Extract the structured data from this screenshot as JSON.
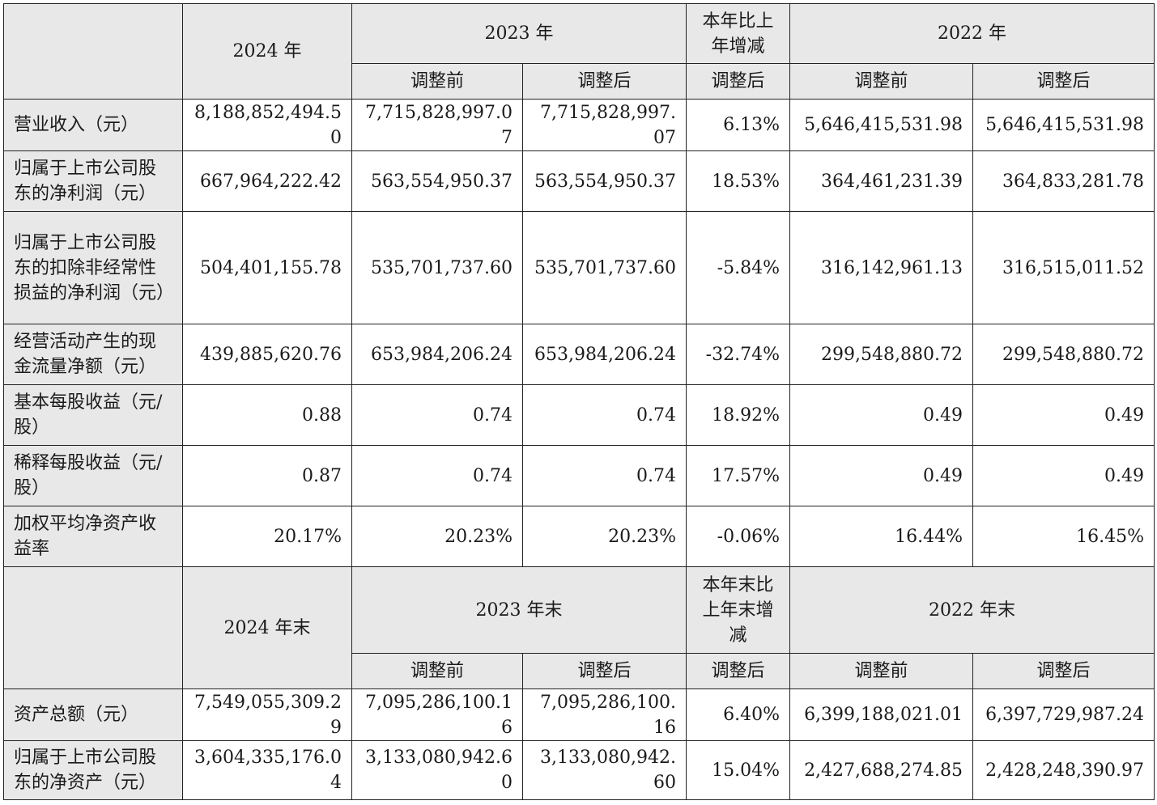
{
  "section1": {
    "headers": {
      "y2024": "2024 年",
      "y2023": "2023 年",
      "change": "本年比上年增减",
      "y2022": "2022 年",
      "before": "调整前",
      "after": "调整后"
    },
    "rows": [
      {
        "label": "营业收入（元）",
        "v2024": "8,188,852,494.50",
        "v2023_before": "7,715,828,997.07",
        "v2023_after": "7,715,828,997.07",
        "change": "6.13%",
        "v2022_before": "5,646,415,531.98",
        "v2022_after": "5,646,415,531.98"
      },
      {
        "label": "归属于上市公司股东的净利润（元）",
        "v2024": "667,964,222.42",
        "v2023_before": "563,554,950.37",
        "v2023_after": "563,554,950.37",
        "change": "18.53%",
        "v2022_before": "364,461,231.39",
        "v2022_after": "364,833,281.78"
      },
      {
        "label": "归属于上市公司股东的扣除非经常性损益的净利润（元）",
        "v2024": "504,401,155.78",
        "v2023_before": "535,701,737.60",
        "v2023_after": "535,701,737.60",
        "change": "-5.84%",
        "v2022_before": "316,142,961.13",
        "v2022_after": "316,515,011.52"
      },
      {
        "label": "经营活动产生的现金流量净额（元）",
        "v2024": "439,885,620.76",
        "v2023_before": "653,984,206.24",
        "v2023_after": "653,984,206.24",
        "change": "-32.74%",
        "v2022_before": "299,548,880.72",
        "v2022_after": "299,548,880.72"
      },
      {
        "label": "基本每股收益（元/股）",
        "v2024": "0.88",
        "v2023_before": "0.74",
        "v2023_after": "0.74",
        "change": "18.92%",
        "v2022_before": "0.49",
        "v2022_after": "0.49"
      },
      {
        "label": "稀释每股收益（元/股）",
        "v2024": "0.87",
        "v2023_before": "0.74",
        "v2023_after": "0.74",
        "change": "17.57%",
        "v2022_before": "0.49",
        "v2022_after": "0.49"
      },
      {
        "label": "加权平均净资产收益率",
        "v2024": "20.17%",
        "v2023_before": "20.23%",
        "v2023_after": "20.23%",
        "change": "-0.06%",
        "v2022_before": "16.44%",
        "v2022_after": "16.45%"
      }
    ]
  },
  "section2": {
    "headers": {
      "y2024": "2024 年末",
      "y2023": "2023 年末",
      "change": "本年末比上年末增减",
      "y2022": "2022 年末",
      "before": "调整前",
      "after": "调整后"
    },
    "rows": [
      {
        "label": "资产总额（元）",
        "v2024": "7,549,055,309.29",
        "v2023_before": "7,095,286,100.16",
        "v2023_after": "7,095,286,100.16",
        "change": "6.40%",
        "v2022_before": "6,399,188,021.01",
        "v2022_after": "6,397,729,987.24"
      },
      {
        "label": "归属于上市公司股东的净资产（元）",
        "v2024": "3,604,335,176.04",
        "v2023_before": "3,133,080,942.60",
        "v2023_after": "3,133,080,942.60",
        "change": "15.04%",
        "v2022_before": "2,427,688,274.85",
        "v2022_after": "2,428,248,390.97"
      }
    ]
  }
}
